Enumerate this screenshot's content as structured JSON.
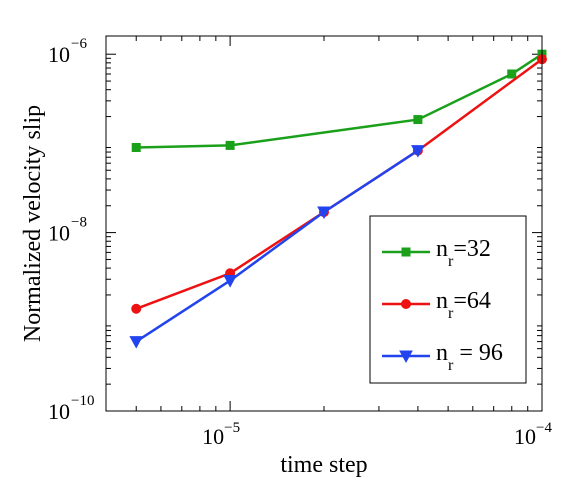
{
  "chart_data": {
    "type": "line",
    "xlabel": "time step",
    "ylabel": "Normalized velocity slip",
    "xscale": "log",
    "yscale": "log",
    "xlim": [
      4e-06,
      0.0001
    ],
    "ylim": [
      1e-10,
      1.6e-06
    ],
    "xticks": [
      {
        "value": 1e-05,
        "base": "10",
        "exponent": "−5"
      },
      {
        "value": 0.0001,
        "base": "10",
        "exponent": "−4"
      }
    ],
    "yticks": [
      {
        "value": 1e-10,
        "base": "10",
        "exponent": "−10"
      },
      {
        "value": 1e-08,
        "base": "10",
        "exponent": "−8"
      },
      {
        "value": 1e-06,
        "base": "10",
        "exponent": "−6"
      }
    ],
    "grid": false,
    "legend_position": "lower-right",
    "series": [
      {
        "name": "n_r=32",
        "legend_main": "n",
        "legend_sub": "r",
        "legend_rest": "=32",
        "color": "#1aa01a",
        "marker": "square",
        "x": [
          5e-06,
          1e-05,
          4e-05,
          8e-05,
          0.0001
        ],
        "y": [
          9e-08,
          9.5e-08,
          1.85e-07,
          6e-07,
          1e-06
        ]
      },
      {
        "name": "n_r=64",
        "legend_main": "n",
        "legend_sub": "r",
        "legend_rest": "=64",
        "color": "#ee1111",
        "marker": "circle",
        "x": [
          5e-06,
          1e-05,
          2e-05,
          4e-05,
          0.0001
        ],
        "y": [
          1.4e-09,
          3.5e-09,
          1.7e-08,
          8.3e-08,
          8.8e-07
        ]
      },
      {
        "name": "n_r = 96",
        "legend_main": "n",
        "legend_sub": "r",
        "legend_rest": " = 96",
        "color": "#2244ee",
        "marker": "triangle-down",
        "x": [
          5e-06,
          1e-05,
          2e-05,
          4e-05
        ],
        "y": [
          6e-10,
          2.9e-09,
          1.7e-08,
          8.3e-08
        ]
      }
    ]
  }
}
